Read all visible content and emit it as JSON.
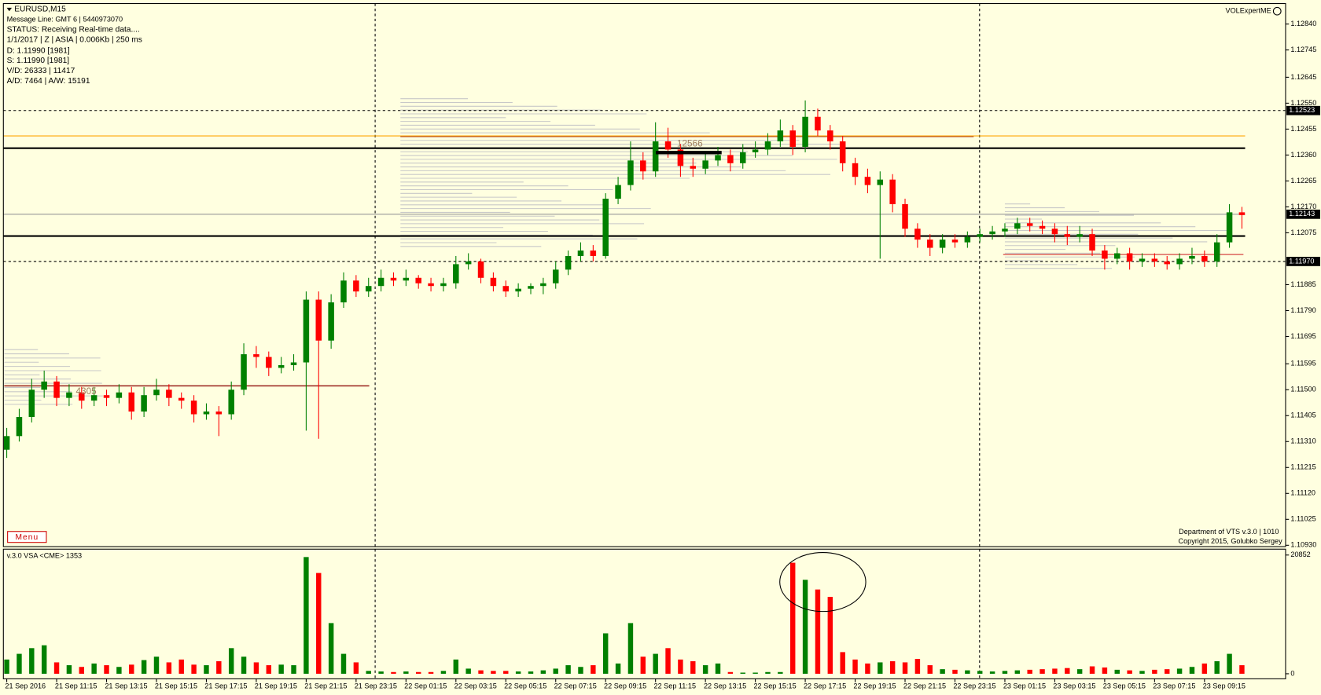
{
  "chart_data": {
    "type": "candlestick",
    "info": [
      "EURUSD,M15",
      "Message Line: GMT 6 | 5440973070",
      "STATUS:  Receiving Real-time data....",
      "1/1/2017 | Z | ASIA | 0.006Kb | 250 ms",
      "D: 1.11990  [1981]",
      "S: 1.11990  [1981]",
      "V/D: 26333 | 11417",
      "A/D: 7464 | A/W: 15191"
    ],
    "indicator_name": "VOLExpertME",
    "menu": "Menu",
    "footer": [
      "Department of VTS  v.3.0 | 1010",
      "Copyright 2015, Golubko Sergey"
    ],
    "volume_title": "v.3.0 VSA <CME> 1353",
    "annotations": [
      "12566",
      "4305"
    ],
    "up_color": "#008000",
    "down_color": "#ff0000",
    "categories": [
      "21 Sep 2016",
      null,
      null,
      null,
      "21 Sep 11:15",
      null,
      null,
      null,
      "21 Sep 13:15",
      null,
      null,
      null,
      "21 Sep 15:15",
      null,
      null,
      null,
      "21 Sep 17:15",
      null,
      null,
      null,
      "21 Sep 19:15",
      null,
      null,
      null,
      "21 Sep 21:15",
      null,
      null,
      null,
      "21 Sep 23:15",
      null,
      null,
      null,
      "22 Sep 01:15",
      null,
      null,
      null,
      "22 Sep 03:15",
      null,
      null,
      null,
      "22 Sep 05:15",
      null,
      null,
      null,
      "22 Sep 07:15",
      null,
      null,
      null,
      "22 Sep 09:15",
      null,
      null,
      null,
      "22 Sep 11:15",
      null,
      null,
      null,
      "22 Sep 13:15",
      null,
      null,
      null,
      "22 Sep 15:15",
      null,
      null,
      null,
      "22 Sep 17:15",
      null,
      null,
      null,
      "22 Sep 19:15",
      null,
      null,
      null,
      "22 Sep 21:15",
      null,
      null,
      null,
      "22 Sep 23:15",
      null,
      null,
      null,
      "23 Sep 01:15",
      null,
      null,
      null,
      "23 Sep 03:15",
      null,
      null,
      null,
      "23 Sep 05:15",
      null,
      null,
      null,
      "23 Sep 07:15",
      null,
      null,
      null,
      "23 Sep 09:15",
      null,
      null,
      null
    ],
    "ohlc": [
      [
        1.1128,
        1.1136,
        1.1125,
        1.1133
      ],
      [
        1.1133,
        1.1143,
        1.1131,
        1.114
      ],
      [
        1.114,
        1.1154,
        1.1138,
        1.115
      ],
      [
        1.115,
        1.1157,
        1.1147,
        1.1153
      ],
      [
        1.1153,
        1.1155,
        1.1144,
        1.1147
      ],
      [
        1.1147,
        1.1152,
        1.1144,
        1.1149
      ],
      [
        1.1149,
        1.1151,
        1.1143,
        1.1146
      ],
      [
        1.1146,
        1.1151,
        1.1144,
        1.1148
      ],
      [
        1.1148,
        1.115,
        1.1144,
        1.1147
      ],
      [
        1.1147,
        1.1152,
        1.1145,
        1.1149
      ],
      [
        1.1149,
        1.1151,
        1.1139,
        1.1142
      ],
      [
        1.1142,
        1.1151,
        1.114,
        1.1148
      ],
      [
        1.1148,
        1.1154,
        1.1146,
        1.115
      ],
      [
        1.115,
        1.1152,
        1.1144,
        1.1147
      ],
      [
        1.1147,
        1.1149,
        1.1143,
        1.1146
      ],
      [
        1.1146,
        1.1148,
        1.1138,
        1.1141
      ],
      [
        1.1141,
        1.1145,
        1.1139,
        1.1142
      ],
      [
        1.1142,
        1.1144,
        1.1133,
        1.1141
      ],
      [
        1.1141,
        1.1153,
        1.1139,
        1.115
      ],
      [
        1.115,
        1.1167,
        1.1148,
        1.1163
      ],
      [
        1.1163,
        1.1166,
        1.1158,
        1.1162
      ],
      [
        1.1162,
        1.1164,
        1.1155,
        1.1158
      ],
      [
        1.1158,
        1.1162,
        1.1156,
        1.1159
      ],
      [
        1.1159,
        1.1163,
        1.1157,
        1.116
      ],
      [
        1.116,
        1.1186,
        1.1135,
        1.1183
      ],
      [
        1.1183,
        1.1186,
        1.1132,
        1.1168
      ],
      [
        1.1168,
        1.1185,
        1.1165,
        1.1182
      ],
      [
        1.1182,
        1.1193,
        1.118,
        1.119
      ],
      [
        1.119,
        1.1192,
        1.1184,
        1.1186
      ],
      [
        1.1186,
        1.1191,
        1.1184,
        1.1188
      ],
      [
        1.1188,
        1.1194,
        1.1186,
        1.1191
      ],
      [
        1.1191,
        1.1193,
        1.1188,
        1.119
      ],
      [
        1.119,
        1.1194,
        1.1188,
        1.1191
      ],
      [
        1.1191,
        1.1192,
        1.1187,
        1.1189
      ],
      [
        1.1189,
        1.1191,
        1.1186,
        1.1188
      ],
      [
        1.1188,
        1.1191,
        1.1186,
        1.1189
      ],
      [
        1.1189,
        1.1199,
        1.1187,
        1.1196
      ],
      [
        1.1196,
        1.12,
        1.1194,
        1.1197
      ],
      [
        1.1197,
        1.1198,
        1.1189,
        1.1191
      ],
      [
        1.1191,
        1.1193,
        1.1186,
        1.1188
      ],
      [
        1.1188,
        1.119,
        1.1184,
        1.1186
      ],
      [
        1.1186,
        1.1189,
        1.1184,
        1.1187
      ],
      [
        1.1187,
        1.1189,
        1.1185,
        1.1188
      ],
      [
        1.1188,
        1.1191,
        1.1185,
        1.1189
      ],
      [
        1.1189,
        1.1197,
        1.1187,
        1.1194
      ],
      [
        1.1194,
        1.1201,
        1.1192,
        1.1199
      ],
      [
        1.1199,
        1.1204,
        1.1197,
        1.1201
      ],
      [
        1.1201,
        1.1203,
        1.1197,
        1.1199
      ],
      [
        1.1199,
        1.1222,
        1.1198,
        1.122
      ],
      [
        1.122,
        1.1228,
        1.1218,
        1.1225
      ],
      [
        1.1225,
        1.1241,
        1.1223,
        1.1234
      ],
      [
        1.1234,
        1.1237,
        1.1227,
        1.123
      ],
      [
        1.123,
        1.1248,
        1.1228,
        1.1241
      ],
      [
        1.1241,
        1.1246,
        1.1235,
        1.1238
      ],
      [
        1.1238,
        1.124,
        1.1228,
        1.1232
      ],
      [
        1.1232,
        1.1235,
        1.1228,
        1.1231
      ],
      [
        1.1231,
        1.1237,
        1.1229,
        1.1234
      ],
      [
        1.1234,
        1.1239,
        1.1232,
        1.1236
      ],
      [
        1.1236,
        1.1238,
        1.123,
        1.1233
      ],
      [
        1.1233,
        1.124,
        1.1231,
        1.1237
      ],
      [
        1.1237,
        1.1241,
        1.1235,
        1.1238
      ],
      [
        1.1238,
        1.1244,
        1.1236,
        1.1241
      ],
      [
        1.1241,
        1.1249,
        1.1239,
        1.1245
      ],
      [
        1.1245,
        1.1247,
        1.1236,
        1.1239
      ],
      [
        1.1239,
        1.1256,
        1.1237,
        1.125
      ],
      [
        1.125,
        1.1253,
        1.1243,
        1.1245
      ],
      [
        1.1245,
        1.1247,
        1.1238,
        1.1241
      ],
      [
        1.1241,
        1.1243,
        1.123,
        1.1233
      ],
      [
        1.1233,
        1.1235,
        1.1225,
        1.1228
      ],
      [
        1.1228,
        1.1231,
        1.1222,
        1.1225
      ],
      [
        1.1225,
        1.123,
        1.1198,
        1.1227
      ],
      [
        1.1227,
        1.1229,
        1.1215,
        1.1218
      ],
      [
        1.1218,
        1.122,
        1.1206,
        1.1209
      ],
      [
        1.1209,
        1.1211,
        1.1202,
        1.1205
      ],
      [
        1.1205,
        1.1207,
        1.1199,
        1.1202
      ],
      [
        1.1202,
        1.1207,
        1.12,
        1.1205
      ],
      [
        1.1205,
        1.1207,
        1.1202,
        1.1204
      ],
      [
        1.1204,
        1.1208,
        1.1202,
        1.1206
      ],
      [
        1.1206,
        1.1209,
        1.1204,
        1.1207
      ],
      [
        1.1207,
        1.121,
        1.1205,
        1.1208
      ],
      [
        1.1208,
        1.1211,
        1.1206,
        1.1209
      ],
      [
        1.1209,
        1.1213,
        1.1207,
        1.1211
      ],
      [
        1.1211,
        1.1213,
        1.1208,
        1.121
      ],
      [
        1.121,
        1.1212,
        1.1207,
        1.1209
      ],
      [
        1.1209,
        1.1211,
        1.1204,
        1.1207
      ],
      [
        1.1207,
        1.121,
        1.1203,
        1.1206
      ],
      [
        1.1206,
        1.121,
        1.1204,
        1.1207
      ],
      [
        1.1207,
        1.1209,
        1.1199,
        1.1201
      ],
      [
        1.1201,
        1.1203,
        1.1194,
        1.1198
      ],
      [
        1.1198,
        1.1202,
        1.1196,
        1.12
      ],
      [
        1.12,
        1.1202,
        1.1194,
        1.1197
      ],
      [
        1.1197,
        1.12,
        1.1195,
        1.1198
      ],
      [
        1.1198,
        1.12,
        1.1195,
        1.1197
      ],
      [
        1.1197,
        1.1199,
        1.1194,
        1.1196
      ],
      [
        1.1196,
        1.12,
        1.1194,
        1.1198
      ],
      [
        1.1198,
        1.1202,
        1.1196,
        1.1199
      ],
      [
        1.1199,
        1.1201,
        1.1195,
        1.1197
      ],
      [
        1.1197,
        1.1207,
        1.1195,
        1.1204
      ],
      [
        1.1204,
        1.1218,
        1.1202,
        1.1215
      ],
      [
        1.1215,
        1.1217,
        1.1209,
        1.1214
      ]
    ],
    "volume": [
      2500,
      3500,
      4500,
      5000,
      2000,
      1500,
      1200,
      1800,
      1500,
      1200,
      1600,
      2400,
      3000,
      2000,
      2500,
      1600,
      1500,
      2200,
      4500,
      3000,
      2000,
      1500,
      1600,
      1500,
      20500,
      17700,
      8900,
      3500,
      2000,
      500,
      400,
      300,
      400,
      300,
      300,
      500,
      2500,
      900,
      600,
      500,
      500,
      400,
      400,
      600,
      900,
      1500,
      1200,
      1500,
      7100,
      1800,
      8900,
      3000,
      3500,
      4500,
      2500,
      2200,
      1500,
      1800,
      300,
      200,
      200,
      300,
      300,
      19500,
      16500,
      14800,
      13500,
      3800,
      2500,
      1800,
      2000,
      2200,
      2000,
      2600,
      1500,
      800,
      700,
      600,
      500,
      400,
      500,
      600,
      700,
      800,
      900,
      1000,
      800,
      1300,
      1100,
      700,
      600,
      500,
      700,
      800,
      900,
      1200,
      1800,
      2200,
      3500,
      1500
    ],
    "ylim": [
      1.10925,
      1.12915
    ],
    "yticks": [
      {
        "value": 1.1284,
        "label": "1.12840"
      },
      {
        "value": 1.12745,
        "label": "1.12745"
      },
      {
        "value": 1.12645,
        "label": "1.12645"
      },
      {
        "value": 1.1255,
        "label": "1.12550"
      },
      {
        "value": 1.12455,
        "label": "1.12455"
      },
      {
        "value": 1.1236,
        "label": "1.12360"
      },
      {
        "value": 1.12265,
        "label": "1.12265"
      },
      {
        "value": 1.1217,
        "label": "1.12170"
      },
      {
        "value": 1.12075,
        "label": "1.12075"
      },
      {
        "value": 1.11885,
        "label": "1.11885"
      },
      {
        "value": 1.1179,
        "label": "1.11790"
      },
      {
        "value": 1.11695,
        "label": "1.11695"
      },
      {
        "value": 1.11595,
        "label": "1.11595"
      },
      {
        "value": 1.115,
        "label": "1.11500"
      },
      {
        "value": 1.11405,
        "label": "1.11405"
      },
      {
        "value": 1.1131,
        "label": "1.11310"
      },
      {
        "value": 1.11215,
        "label": "1.11215"
      },
      {
        "value": 1.1112,
        "label": "1.11120"
      },
      {
        "value": 1.11025,
        "label": "1.11025"
      },
      {
        "value": 1.1093,
        "label": "1.10930"
      }
    ],
    "y2lim": [
      0,
      20852
    ],
    "y2ticks": [
      0,
      20852
    ],
    "hlines": [
      {
        "value": 1.12523,
        "label": "1.12523",
        "color": "#000000",
        "dashed": true
      },
      {
        "value": 1.1243,
        "color": "#ffa500",
        "dashed": false
      },
      {
        "value": 1.12385,
        "color": "#000000",
        "dashed": false,
        "thick": true
      },
      {
        "value": 1.12143,
        "label": "1.12143",
        "color": "#999999",
        "dashed": false
      },
      {
        "value": 1.12063,
        "color": "#000000",
        "dashed": false,
        "thick": true
      },
      {
        "value": 1.1197,
        "label": "1.11970",
        "color": "#000000",
        "dashed": true
      }
    ]
  }
}
